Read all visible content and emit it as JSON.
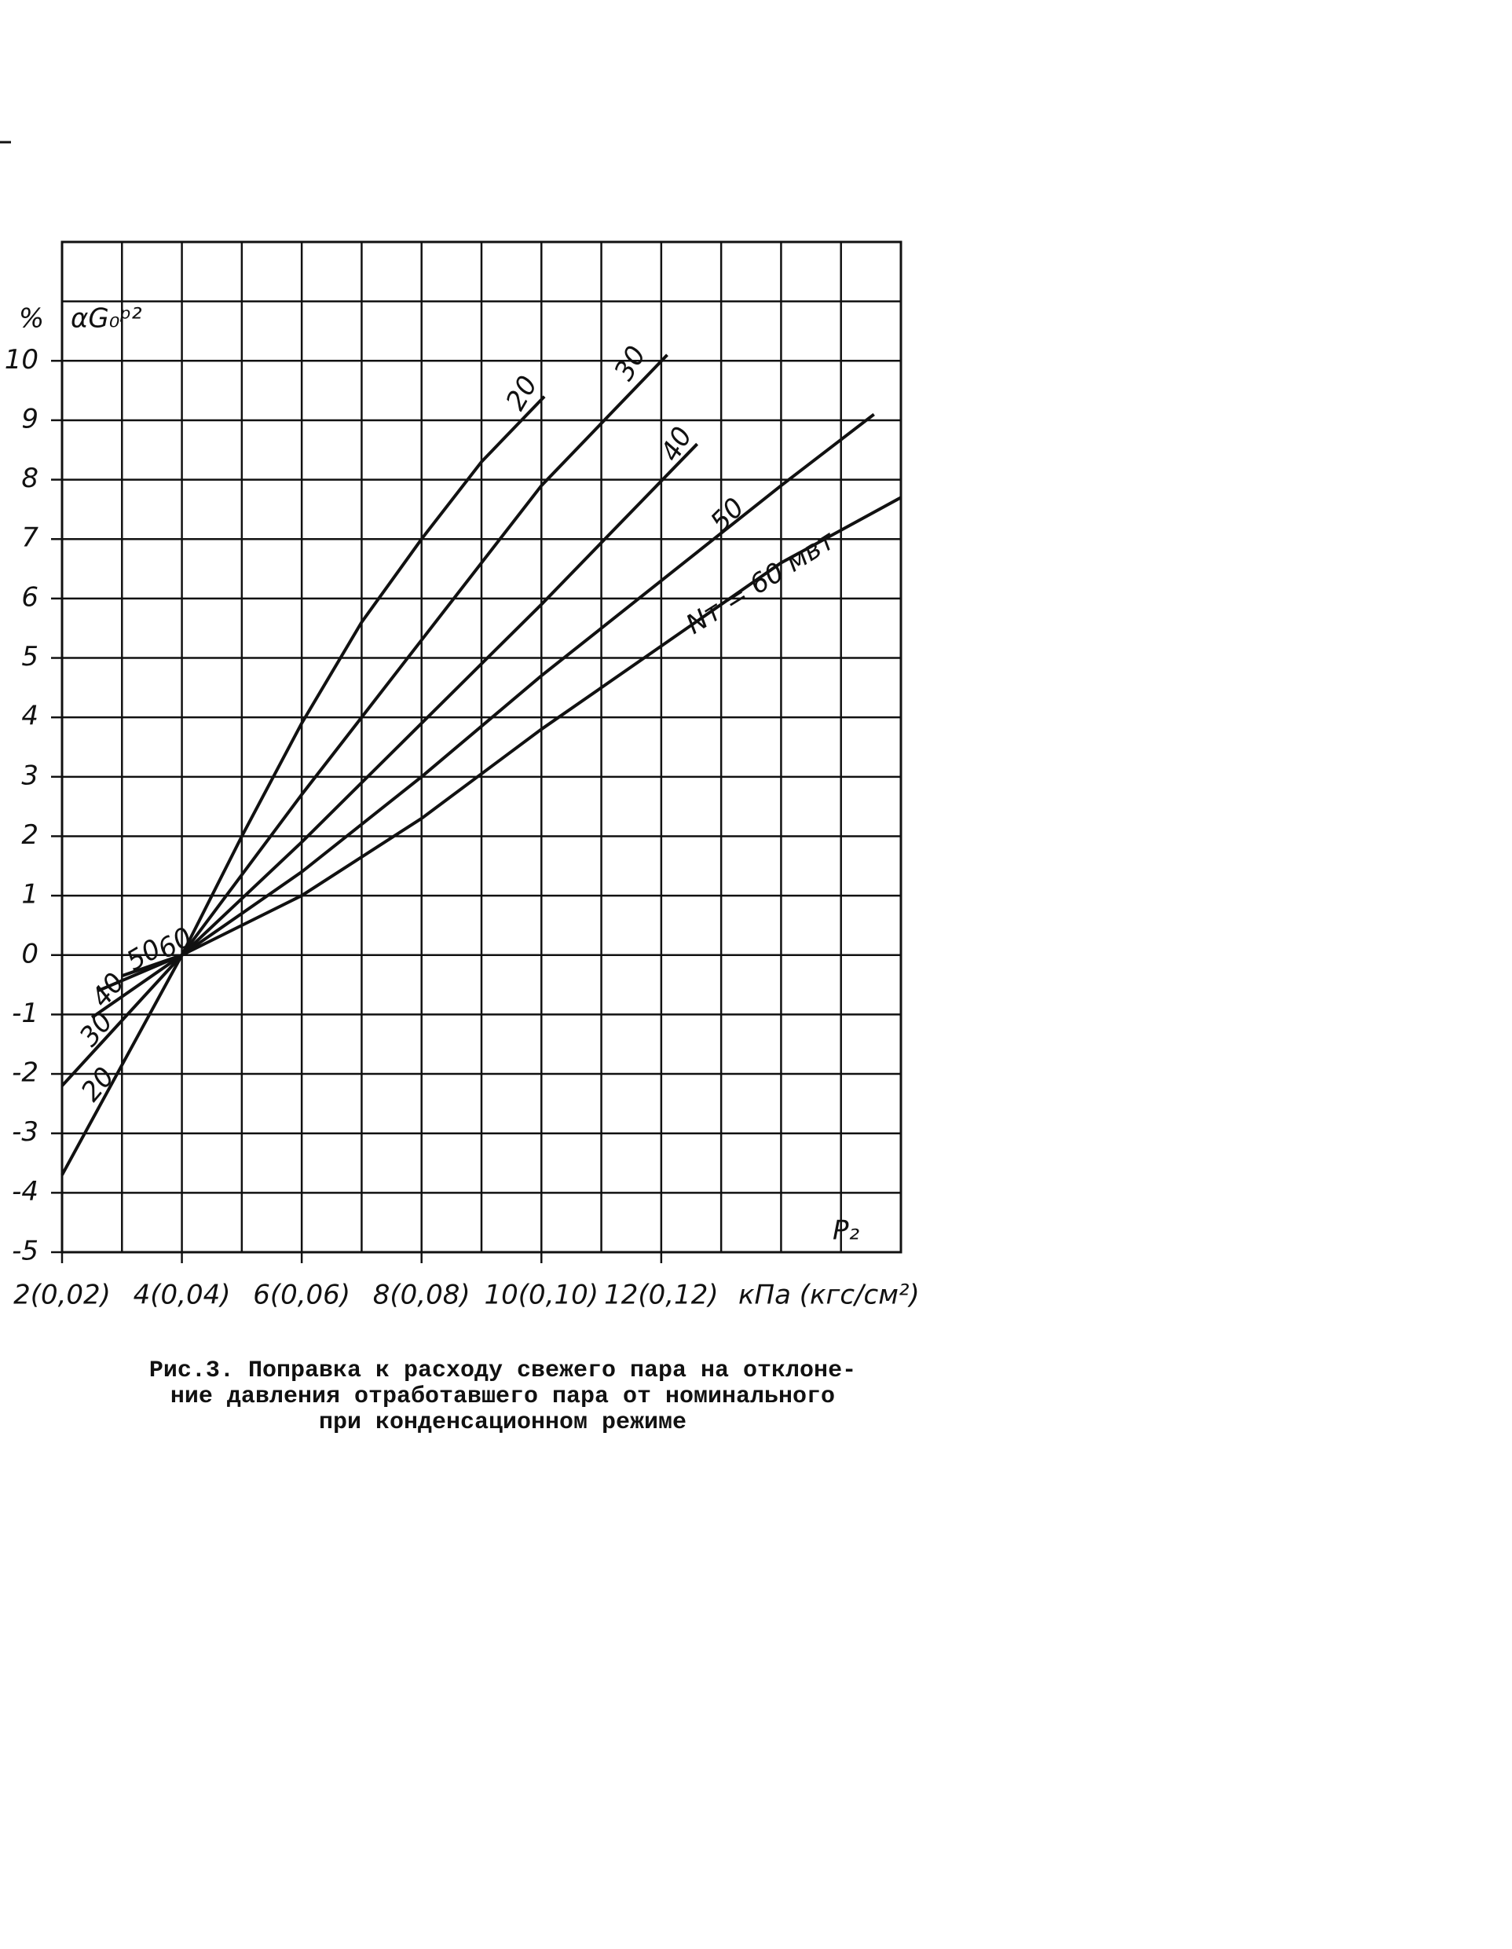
{
  "chart_data": {
    "type": "line",
    "y_unit": "%",
    "y_label": "αG₀ᵖ²",
    "x_label": "P₂",
    "x_unit": "кПа (кгс/см²)",
    "caption": [
      "Рис.3. Поправка к расходу свежего пара на отклоне-",
      "ние давления отработавшего пара от номинального",
      "при конденсационном режиме"
    ],
    "xlim": [
      2,
      16
    ],
    "ylim": [
      -5,
      12
    ],
    "xticks": [
      {
        "value": 2,
        "label": "2(0,02)"
      },
      {
        "value": 4,
        "label": "4(0,04)"
      },
      {
        "value": 6,
        "label": "6(0,06)"
      },
      {
        "value": 8,
        "label": "8(0,08)"
      },
      {
        "value": 10,
        "label": "10(0,10)"
      },
      {
        "value": 12,
        "label": "12(0,12)"
      }
    ],
    "yticks": [
      -5,
      -4,
      -3,
      -2,
      -1,
      0,
      1,
      2,
      3,
      4,
      5,
      6,
      7,
      8,
      9,
      10
    ],
    "x_minor_ticks": [
      3,
      5,
      7,
      9,
      11,
      13,
      14,
      15
    ],
    "y_minor_ticks": [
      11
    ],
    "grid": true,
    "series": [
      {
        "name": "20",
        "color": "#111111",
        "x": [
          2,
          3,
          4,
          5,
          6,
          7,
          8,
          9,
          10.05
        ],
        "values": [
          -3.7,
          -1.85,
          0,
          2.0,
          3.9,
          5.6,
          7.0,
          8.3,
          9.4
        ]
      },
      {
        "name": "30",
        "color": "#111111",
        "x": [
          2,
          4,
          6,
          8,
          10,
          12.1
        ],
        "values": [
          -2.2,
          0,
          2.7,
          5.3,
          7.9,
          10.1
        ]
      },
      {
        "name": "40",
        "color": "#111111",
        "x": [
          2.5,
          4,
          6,
          8,
          10,
          12.6
        ],
        "values": [
          -1.05,
          0,
          1.9,
          3.9,
          5.9,
          8.6
        ]
      },
      {
        "name": "50",
        "color": "#111111",
        "x": [
          2.6,
          4,
          6,
          8,
          10,
          12,
          14,
          15.55
        ],
        "values": [
          -0.6,
          0,
          1.4,
          3.0,
          4.7,
          6.3,
          7.9,
          9.1
        ]
      },
      {
        "name": "Nт = 60 мвт",
        "color": "#111111",
        "x": [
          3,
          4,
          6,
          8,
          10,
          12,
          14,
          16
        ],
        "values": [
          -0.35,
          0,
          1.0,
          2.3,
          3.8,
          5.2,
          6.6,
          7.7
        ]
      }
    ],
    "annotations": [
      "50",
      "60",
      "40",
      "30",
      "20"
    ]
  }
}
